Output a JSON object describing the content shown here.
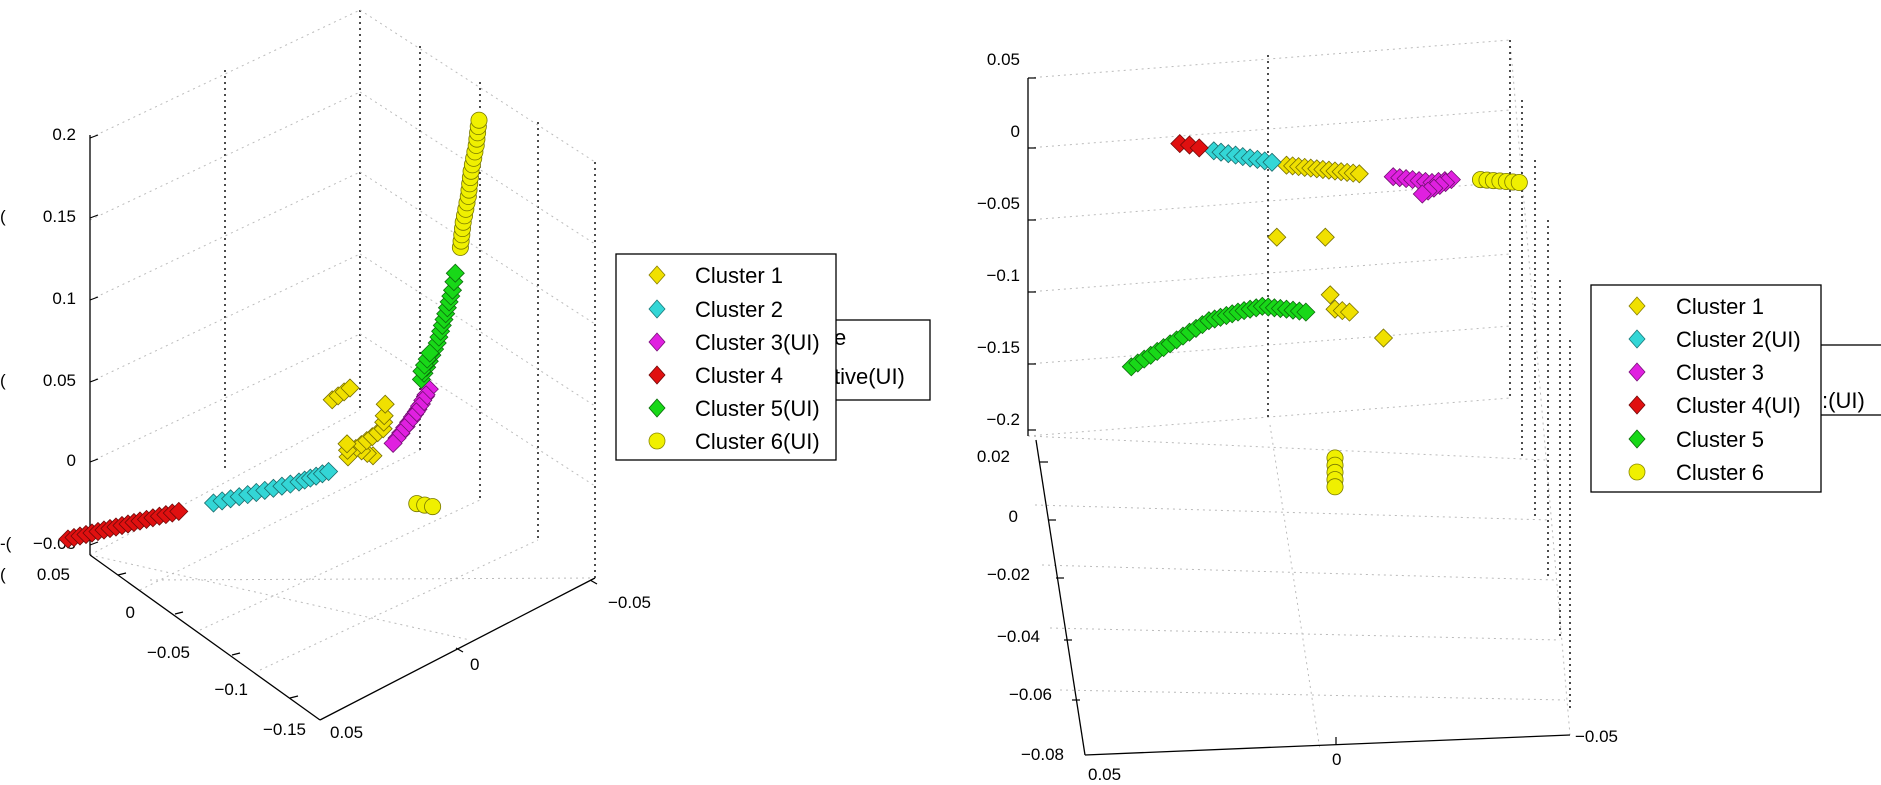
{
  "chart_data": [
    {
      "type": "scatter",
      "projection": "3d",
      "grid": true,
      "legend": "right",
      "z_ticks": [
        "0.2",
        "0.15",
        "0.1",
        "0.05",
        "0",
        "−0.05"
      ],
      "y_ticks": [
        "0.05",
        "0",
        "−0.05",
        "−0.1",
        "−0.15"
      ],
      "x_ticks": [
        "0.05",
        "0",
        "−0.05"
      ],
      "left_edge_glyphs": [
        "(",
        "(",
        "(",
        "-(",
        "("
      ],
      "legend_entries": [
        {
          "label": "Cluster 1",
          "color": "#f0e000",
          "marker": "diamond"
        },
        {
          "label": "Cluster 2",
          "color": "#33d6d6",
          "marker": "diamond"
        },
        {
          "label": "Cluster 3(UI)",
          "color": "#e020e0",
          "marker": "diamond"
        },
        {
          "label": "Cluster 4",
          "color": "#e01010",
          "marker": "diamond"
        },
        {
          "label": "Cluster 5(UI)",
          "color": "#18d818",
          "marker": "diamond"
        },
        {
          "label": "Cluster 6(UI)",
          "color": "#f0f000",
          "marker": "circle"
        }
      ],
      "underlying_legend_text": [
        "e",
        "tive(UI)"
      ],
      "series": [
        {
          "name": "Cluster 1",
          "points": [
            [
              0.01,
              -0.03,
              0.005
            ],
            [
              0.012,
              -0.035,
              0.012
            ],
            [
              0.008,
              -0.028,
              0.02
            ],
            [
              0.006,
              -0.03,
              0.028
            ],
            [
              0.004,
              -0.032,
              0.035
            ],
            [
              0.014,
              -0.036,
              0.008
            ],
            [
              0.016,
              -0.034,
              0.016
            ],
            [
              0.018,
              -0.038,
              0.045
            ],
            [
              0.01,
              -0.04,
              0.05
            ]
          ]
        },
        {
          "name": "Cluster 2",
          "points": [
            [
              0.03,
              -0.075,
              0.0
            ],
            [
              0.028,
              -0.07,
              0.0
            ],
            [
              0.026,
              -0.065,
              0.0
            ],
            [
              0.024,
              -0.06,
              0.0
            ],
            [
              0.022,
              -0.055,
              0.0
            ],
            [
              0.02,
              -0.05,
              0.0
            ],
            [
              0.018,
              -0.045,
              0.001
            ],
            [
              0.016,
              -0.042,
              0.002
            ]
          ]
        },
        {
          "name": "Cluster 3(UI)",
          "points": [
            [
              0.0,
              -0.03,
              0.015
            ],
            [
              -0.002,
              -0.028,
              0.022
            ],
            [
              -0.004,
              -0.026,
              0.03
            ],
            [
              -0.006,
              -0.025,
              0.038
            ],
            [
              -0.003,
              -0.027,
              0.026
            ],
            [
              0.002,
              -0.031,
              0.01
            ]
          ]
        },
        {
          "name": "Cluster 4",
          "points": [
            [
              0.045,
              -0.12,
              0.0
            ],
            [
              0.043,
              -0.112,
              0.0
            ],
            [
              0.041,
              -0.104,
              0.0
            ],
            [
              0.039,
              -0.096,
              0.0
            ],
            [
              0.037,
              -0.09,
              0.0
            ],
            [
              0.035,
              -0.084,
              0.0
            ]
          ]
        },
        {
          "name": "Cluster 5(UI)",
          "points": [
            [
              -0.004,
              -0.026,
              0.045
            ],
            [
              -0.006,
              -0.025,
              0.055
            ],
            [
              -0.008,
              -0.024,
              0.065
            ],
            [
              -0.009,
              -0.023,
              0.075
            ],
            [
              -0.01,
              -0.022,
              0.085
            ],
            [
              -0.011,
              -0.021,
              0.095
            ],
            [
              -0.012,
              -0.021,
              0.105
            ],
            [
              -0.005,
              -0.027,
              0.05
            ],
            [
              -0.007,
              -0.026,
              0.06
            ]
          ]
        },
        {
          "name": "Cluster 6(UI)",
          "points": [
            [
              -0.013,
              -0.02,
              0.12
            ],
            [
              -0.014,
              -0.02,
              0.135
            ],
            [
              -0.015,
              -0.019,
              0.15
            ],
            [
              -0.016,
              -0.019,
              0.165
            ],
            [
              -0.017,
              -0.018,
              0.18
            ],
            [
              -0.018,
              -0.018,
              0.195
            ],
            [
              -0.004,
              -0.028,
              -0.03
            ],
            [
              -0.006,
              -0.027,
              -0.032
            ],
            [
              -0.008,
              -0.026,
              -0.034
            ]
          ]
        }
      ]
    },
    {
      "type": "scatter",
      "projection": "3d",
      "grid": true,
      "legend": "right",
      "z_ticks": [
        "0.05",
        "0",
        "−0.05",
        "−0.1",
        "−0.15",
        "−0.2"
      ],
      "y_ticks": [
        "0.02",
        "0",
        "−0.02",
        "−0.04",
        "−0.06",
        "−0.08"
      ],
      "x_ticks": [
        "0.05",
        "0",
        "−0.05"
      ],
      "legend_entries": [
        {
          "label": "Cluster 1",
          "color": "#f0e000",
          "marker": "diamond"
        },
        {
          "label": "Cluster 2(UI)",
          "color": "#33d6d6",
          "marker": "diamond"
        },
        {
          "label": "Cluster 3",
          "color": "#e020e0",
          "marker": "diamond"
        },
        {
          "label": "Cluster 4(UI)",
          "color": "#e01010",
          "marker": "diamond"
        },
        {
          "label": "Cluster 5",
          "color": "#18d818",
          "marker": "diamond"
        },
        {
          "label": "Cluster 6",
          "color": "#f0f000",
          "marker": "circle"
        }
      ],
      "underlying_legend_text": [
        ":(UI)"
      ],
      "series": [
        {
          "name": "Cluster 1",
          "points": [
            [
              0.01,
              0.01,
              -0.03
            ],
            [
              0.005,
              0.01,
              -0.032
            ],
            [
              0.0,
              0.01,
              -0.034
            ],
            [
              -0.005,
              0.01,
              -0.036
            ],
            [
              0.012,
              0.01,
              -0.08
            ],
            [
              0.002,
              0.01,
              -0.08
            ],
            [
              0.0,
              0.01,
              -0.13
            ],
            [
              -0.003,
              0.01,
              -0.132
            ],
            [
              -0.01,
              0.01,
              -0.15
            ],
            [
              0.001,
              0.01,
              -0.12
            ]
          ]
        },
        {
          "name": "Cluster 2(UI)",
          "points": [
            [
              0.025,
              0.01,
              -0.02
            ],
            [
              0.022,
              0.01,
              -0.022
            ],
            [
              0.019,
              0.01,
              -0.024
            ],
            [
              0.016,
              0.01,
              -0.026
            ],
            [
              0.013,
              0.01,
              -0.028
            ]
          ]
        },
        {
          "name": "Cluster 3",
          "points": [
            [
              -0.012,
              0.01,
              -0.038
            ],
            [
              -0.016,
              0.01,
              -0.04
            ],
            [
              -0.02,
              0.01,
              -0.042
            ],
            [
              -0.024,
              0.01,
              -0.04
            ],
            [
              -0.018,
              0.01,
              -0.05
            ]
          ]
        },
        {
          "name": "Cluster 4(UI)",
          "points": [
            [
              0.032,
              0.01,
              -0.015
            ],
            [
              0.03,
              0.01,
              -0.016
            ],
            [
              0.028,
              0.01,
              -0.018
            ]
          ]
        },
        {
          "name": "Cluster 5",
          "points": [
            [
              0.042,
              0.01,
              -0.17
            ],
            [
              0.038,
              0.01,
              -0.162
            ],
            [
              0.034,
              0.01,
              -0.154
            ],
            [
              0.03,
              0.01,
              -0.146
            ],
            [
              0.026,
              0.01,
              -0.138
            ],
            [
              0.02,
              0.01,
              -0.132
            ],
            [
              0.015,
              0.01,
              -0.128
            ],
            [
              0.01,
              0.01,
              -0.13
            ],
            [
              0.006,
              0.01,
              -0.132
            ]
          ]
        },
        {
          "name": "Cluster 6",
          "points": [
            [
              -0.03,
              0.01,
              -0.04
            ],
            [
              -0.034,
              0.01,
              -0.041
            ],
            [
              -0.038,
              0.01,
              -0.042
            ],
            [
              0.0,
              -0.01,
              -0.2
            ],
            [
              0.0,
              -0.013,
              -0.2
            ],
            [
              0.0,
              -0.016,
              -0.2
            ],
            [
              0.0,
              -0.019,
              -0.2
            ],
            [
              0.0,
              -0.022,
              -0.2
            ]
          ]
        }
      ]
    }
  ]
}
